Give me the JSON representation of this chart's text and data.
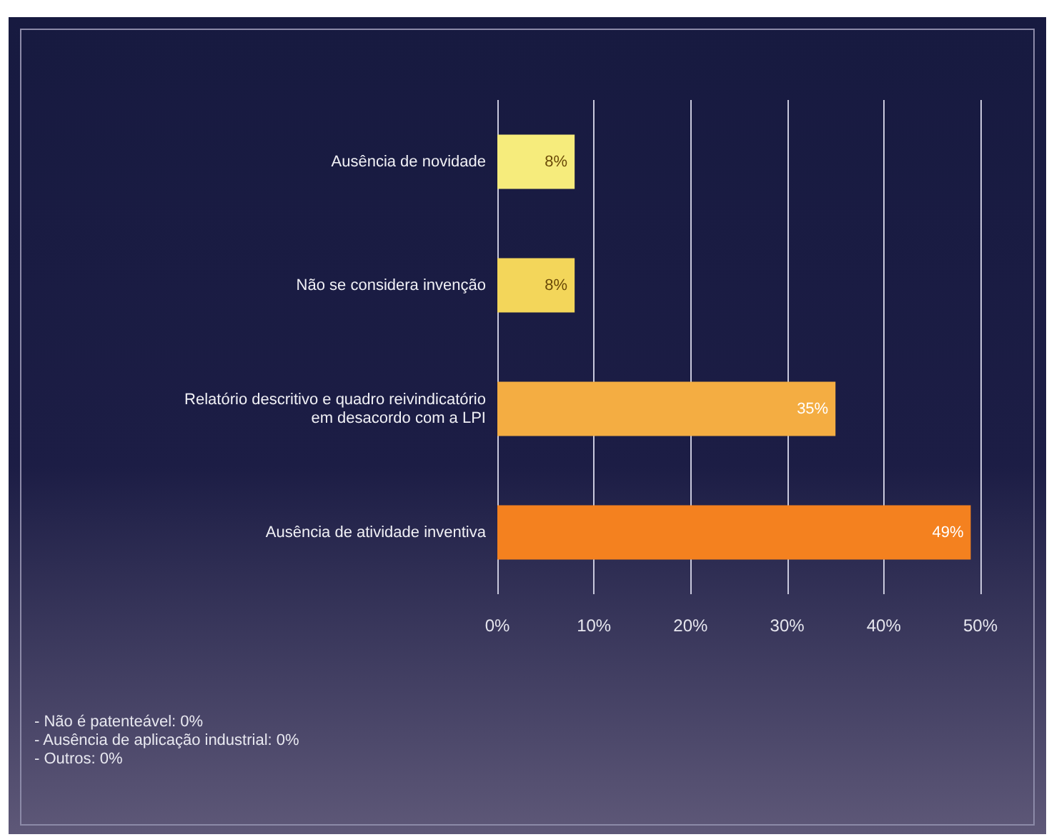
{
  "chart_data": {
    "type": "bar",
    "orientation": "horizontal",
    "categories": [
      "Ausência de novidade",
      "Não se considera invenção",
      "Relatório descritivo e quadro reivindicatório\nem desacordo com a LPI",
      "Ausência de atividade inventiva"
    ],
    "values": [
      8,
      8,
      35,
      49
    ],
    "colors": [
      "#f6ec7c",
      "#f3d65a",
      "#f4ad42",
      "#f4811f"
    ],
    "value_labels": [
      "8%",
      "8%",
      "35%",
      "49%"
    ],
    "xlim": [
      0,
      50
    ],
    "xticks": [
      {
        "value": 0,
        "label": "0%"
      },
      {
        "value": 10,
        "label": "10%"
      },
      {
        "value": 20,
        "label": "20%"
      },
      {
        "value": 30,
        "label": "30%"
      },
      {
        "value": 40,
        "label": "40%"
      },
      {
        "value": 50,
        "label": "50%"
      }
    ],
    "grid": "x",
    "annotations": [
      "- Não é patenteável: 0%",
      "- Ausência de aplicação industrial: 0%",
      "- Outros: 0%"
    ]
  }
}
